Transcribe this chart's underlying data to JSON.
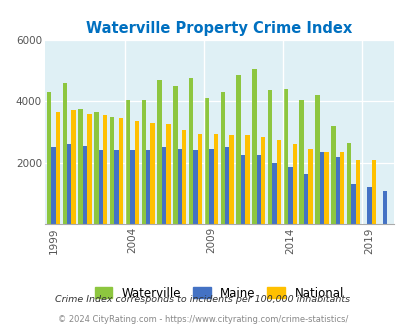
{
  "title": "Waterville Property Crime Index",
  "years": [
    1999,
    2000,
    2001,
    2002,
    2003,
    2004,
    2005,
    2006,
    2007,
    2008,
    2009,
    2010,
    2011,
    2012,
    2013,
    2014,
    2015,
    2016,
    2017,
    2018,
    2019,
    2020
  ],
  "waterville": [
    4300,
    4600,
    3750,
    3650,
    3500,
    4050,
    4050,
    4700,
    4500,
    4750,
    4100,
    4300,
    4850,
    5050,
    4350,
    4400,
    4050,
    4200,
    3200,
    2650,
    0,
    0
  ],
  "maine": [
    2500,
    2600,
    2550,
    2400,
    2400,
    2400,
    2400,
    2500,
    2450,
    2400,
    2450,
    2500,
    2250,
    2250,
    2000,
    1850,
    1650,
    2350,
    2200,
    1300,
    1200,
    1100
  ],
  "national": [
    3650,
    3700,
    3600,
    3550,
    3450,
    3350,
    3300,
    3250,
    3050,
    2950,
    2950,
    2900,
    2900,
    2850,
    2750,
    2600,
    2450,
    2350,
    2350,
    2100,
    2100,
    0
  ],
  "tick_years": [
    1999,
    2004,
    2009,
    2014,
    2019
  ],
  "ylim": [
    0,
    6000
  ],
  "yticks": [
    0,
    2000,
    4000,
    6000
  ],
  "color_waterville": "#8DC63F",
  "color_maine": "#4472C4",
  "color_national": "#FFC000",
  "bg_color": "#DFF0F5",
  "title_color": "#0070C0",
  "footnote1": "Crime Index corresponds to incidents per 100,000 inhabitants",
  "footnote2": "© 2024 CityRating.com - https://www.cityrating.com/crime-statistics/",
  "bar_width": 0.28
}
